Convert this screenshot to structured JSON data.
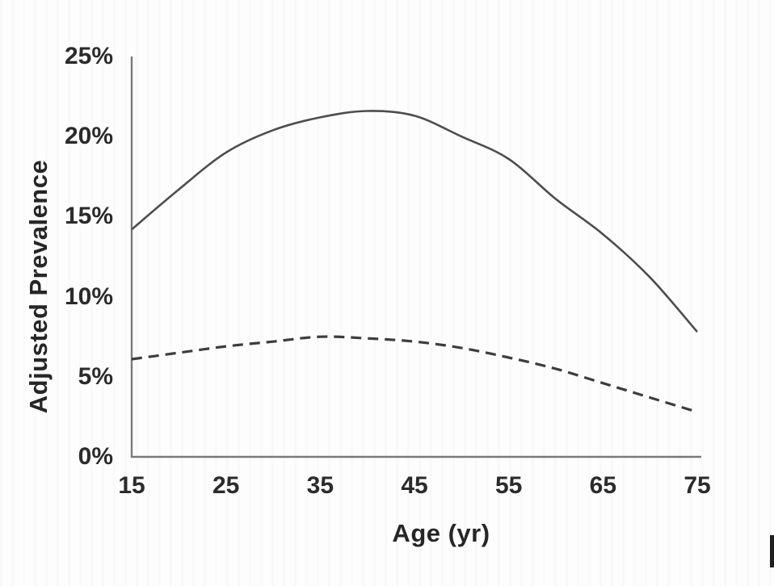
{
  "figure": {
    "background": "#fdfdfd",
    "axis_color": "#7a7a7a",
    "text_color": "#2b2b2b",
    "artifact_bar_color": "#1f1f1f"
  },
  "chart_data": {
    "type": "line",
    "title": "",
    "xlabel": "Age (yr)",
    "ylabel": "Adjusted Prevalence",
    "xlim": [
      15,
      75
    ],
    "ylim": [
      0,
      25
    ],
    "grid": false,
    "legend": "none",
    "x_tick_labels": [
      "15",
      "25",
      "35",
      "45",
      "55",
      "65",
      "75"
    ],
    "y_tick_labels": [
      "0%",
      "5%",
      "10%",
      "15%",
      "20%",
      "25%"
    ],
    "x": [
      15,
      20,
      25,
      30,
      35,
      40,
      45,
      50,
      55,
      60,
      65,
      70,
      75
    ],
    "series": [
      {
        "name": "solid curve (higher adjusted prevalence)",
        "line_style": "solid",
        "color": "#4d4d4d",
        "values": [
          14.2,
          16.7,
          19.0,
          20.4,
          21.2,
          21.6,
          21.3,
          20.0,
          18.6,
          16.1,
          13.9,
          11.2,
          7.8
        ]
      },
      {
        "name": "dashed curve (lower adjusted prevalence)",
        "line_style": "dashed",
        "color": "#3d3d3d",
        "values": [
          6.1,
          6.5,
          6.9,
          7.2,
          7.5,
          7.4,
          7.2,
          6.8,
          6.2,
          5.5,
          4.6,
          3.7,
          2.8
        ]
      }
    ]
  }
}
